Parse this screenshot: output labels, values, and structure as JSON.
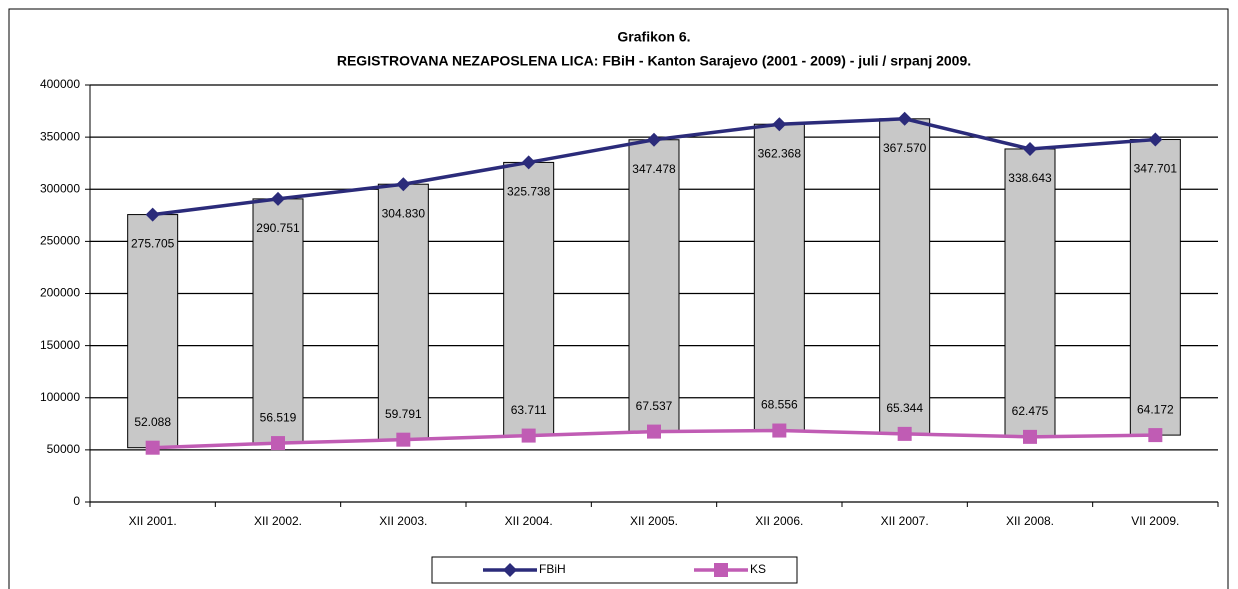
{
  "chart_data": {
    "type": "line",
    "title": "Grafikon 6.",
    "subtitle": "REGISTROVANA NEZAPOSLENA LICA: FBiH - Kanton Sarajevo (2001 - 2009) - juli / srpanj 2009.",
    "categories": [
      "XII 2001.",
      "XII 2002.",
      "XII 2003.",
      "XII 2004.",
      "XII 2005.",
      "XII  2006.",
      "XII 2007.",
      "XII 2008.",
      "VII 2009."
    ],
    "series": [
      {
        "name": "FBiH",
        "color": "#2b2b7a",
        "marker": "diamond",
        "values": [
          275705,
          290751,
          304830,
          325738,
          347478,
          362368,
          367570,
          338643,
          347701
        ],
        "value_labels": [
          "275.705",
          "290.751",
          "304.830",
          "325.738",
          "347.478",
          "362.368",
          "367.570",
          "338.643",
          "347.701"
        ]
      },
      {
        "name": "KS",
        "color": "#c05cb4",
        "marker": "square",
        "values": [
          52088,
          56519,
          59791,
          63711,
          67537,
          68556,
          65344,
          62475,
          64172
        ],
        "value_labels": [
          "52.088",
          "56.519",
          "59.791",
          "63.711",
          "67.537",
          "68.556",
          "65.344",
          "62.475",
          "64.172"
        ]
      }
    ],
    "high_low_bars": true,
    "bar_color": "#c8c8c8",
    "ylim": [
      0,
      400000
    ],
    "yticks": [
      0,
      50000,
      100000,
      150000,
      200000,
      250000,
      300000,
      350000,
      400000
    ],
    "grid": true,
    "legend": "bottom"
  }
}
